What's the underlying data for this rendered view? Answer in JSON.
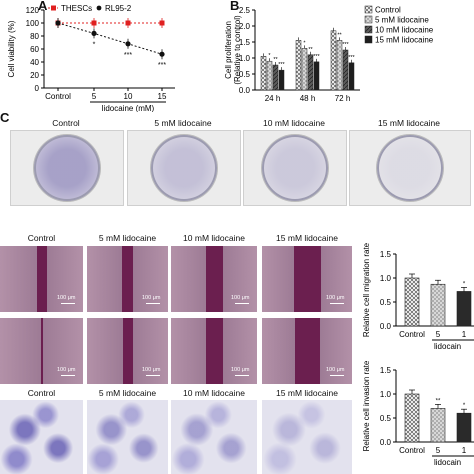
{
  "panel_labels": {
    "a": "A",
    "b": "B",
    "c": "C"
  },
  "chart_data": [
    {
      "type": "line",
      "panel": "A",
      "ylabel": "Cell viability (%)",
      "xlabel": "lidocaine (mM)",
      "categories": [
        "Control",
        "5",
        "10",
        "15"
      ],
      "ylim": [
        0,
        120
      ],
      "yticks": [
        "0",
        "20",
        "40",
        "60",
        "80",
        "100",
        "120"
      ],
      "series": [
        {
          "name": "THESCs",
          "color": "#e02020",
          "values": [
            100,
            100,
            100,
            100
          ],
          "marks": [
            "",
            "",
            "",
            ""
          ]
        },
        {
          "name": "RL95-2",
          "color": "#111111",
          "values": [
            100,
            84,
            68,
            52
          ],
          "marks": [
            "",
            "*",
            "***",
            "***"
          ]
        }
      ]
    },
    {
      "type": "bar",
      "panel": "B",
      "ylabel": "Cell proliferation\n(Relative to control)",
      "categories": [
        "24 h",
        "48 h",
        "72 h"
      ],
      "ylim": [
        0,
        2.5
      ],
      "yticks": [
        "0.0",
        "0.5",
        "1.0",
        "1.5",
        "2.0",
        "2.5"
      ],
      "series": [
        {
          "name": "Control",
          "values": [
            1.05,
            1.55,
            1.85
          ]
        },
        {
          "name": "5 mM lidocaine",
          "values": [
            0.9,
            1.3,
            1.55
          ]
        },
        {
          "name": "10 mM lidocaine",
          "values": [
            0.78,
            1.1,
            1.25
          ]
        },
        {
          "name": "15 mM lidocaine",
          "values": [
            0.62,
            0.88,
            0.85
          ]
        }
      ],
      "marks": [
        [
          "",
          "*",
          "**",
          "***"
        ],
        [
          "",
          "*",
          "**",
          "***"
        ],
        [
          "",
          "**",
          "***",
          "***"
        ]
      ]
    },
    {
      "type": "bar",
      "panel": "migration",
      "ylabel": "Relative cell migration rate",
      "xlabel": "lidocain",
      "categories": [
        "Control",
        "5",
        "1"
      ],
      "ylim": [
        0,
        1.5
      ],
      "yticks": [
        "0.0",
        "0.5",
        "1.0",
        "1.5"
      ],
      "values": [
        1.0,
        0.87,
        0.72
      ],
      "marks": [
        "",
        "",
        "*"
      ]
    },
    {
      "type": "bar",
      "panel": "invasion",
      "ylabel": "Relative cell invasion rate",
      "xlabel": "lidocain",
      "categories": [
        "Control",
        "5",
        "1"
      ],
      "ylim": [
        0,
        1.5
      ],
      "yticks": [
        "0.0",
        "0.5",
        "1.0",
        "1.5"
      ],
      "values": [
        1.0,
        0.7,
        0.6
      ],
      "marks": [
        "",
        "**",
        "*"
      ]
    }
  ],
  "colony": {
    "labels": [
      "Control",
      "5 mM lidocaine",
      "10 mM lidocaine",
      "15 mM lidocaine"
    ],
    "density": [
      0.55,
      0.32,
      0.26,
      0.12
    ]
  },
  "wound": {
    "labels": [
      "Control",
      "5 mM lidocaine",
      "10 mM lidocaine",
      "15 mM lidocaine"
    ],
    "scale_text": "100 μm"
  },
  "invasion": {
    "labels": [
      "Control",
      "5 mM lidocaine",
      "10 mM lidocaine",
      "15 mM lidocaine"
    ],
    "density": [
      0.55,
      0.4,
      0.33,
      0.22
    ]
  }
}
